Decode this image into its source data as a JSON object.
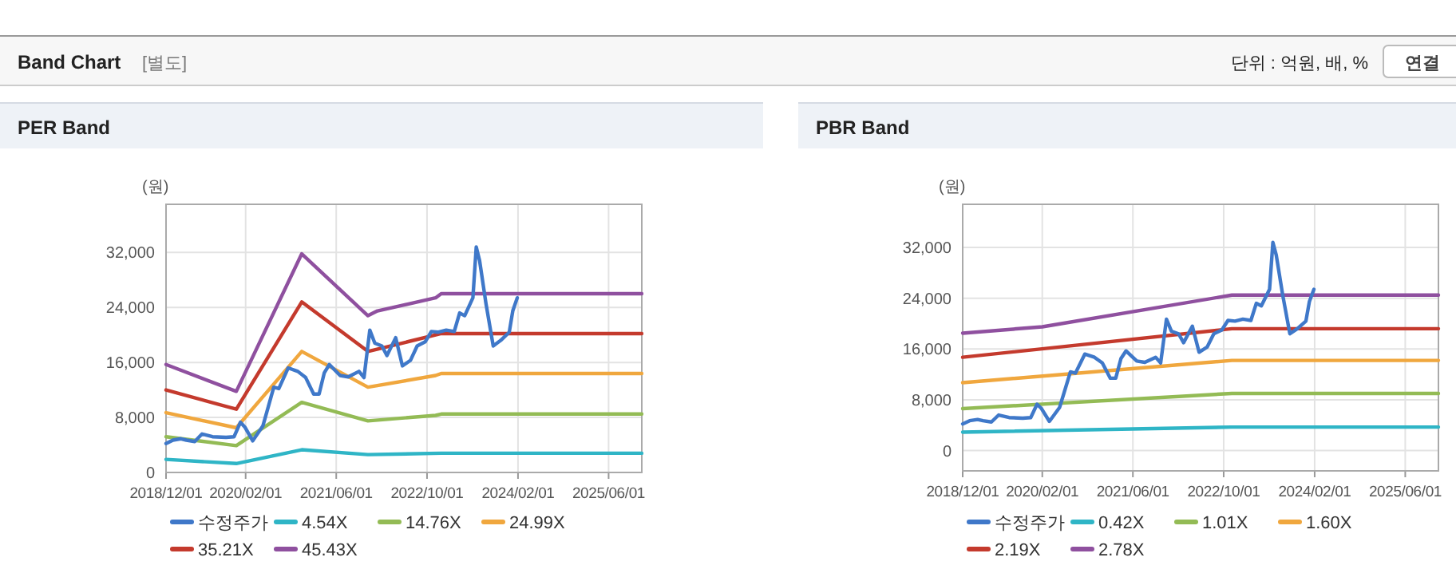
{
  "chart_data": [
    {
      "type": "other",
      "title": "Band Chart",
      "annotations": [
        "[별도]",
        "단위 : 억원, 배, %",
        "연결"
      ]
    },
    {
      "type": "line",
      "title": "PER Band",
      "ylabel": "(원)",
      "xlim": [
        "2018-12-01",
        "2025-11-26"
      ],
      "ylim": [
        0,
        39000
      ],
      "xticks": [
        {
          "value": "2018-12-01",
          "label": "2018/12/01"
        },
        {
          "value": "2020-02-01",
          "label": "2020/02/01"
        },
        {
          "value": "2021-06-01",
          "label": "2021/06/01"
        },
        {
          "value": "2022-10-01",
          "label": "2022/10/01"
        },
        {
          "value": "2024-02-01",
          "label": "2024/02/01"
        },
        {
          "value": "2025-06-01",
          "label": "2025/06/01"
        }
      ],
      "yticks": [
        0,
        {
          "value": 8000,
          "label": "8,000"
        },
        {
          "value": 16000,
          "label": "16,000"
        },
        {
          "value": 24000,
          "label": "24,000"
        },
        {
          "value": 32000,
          "label": "32,000"
        }
      ],
      "grid": true,
      "legend": "bottom",
      "marker": "none",
      "line_style": "solid",
      "series": [
        {
          "name": "수정주가",
          "color": "#3f78c9",
          "x": [
            "2018-12-01",
            "2019-01-07",
            "2019-02-19",
            "2019-03-20",
            "2019-05-04",
            "2019-06-12",
            "2019-08-07",
            "2019-10-19",
            "2019-12-01",
            "2020-01-04",
            "2020-01-28",
            "2020-03-10",
            "2020-05-04",
            "2020-07-01",
            "2020-07-28",
            "2020-09-16",
            "2020-11-07",
            "2020-12-19",
            "2021-01-31",
            "2021-03-01",
            "2021-03-29",
            "2021-04-25",
            "2021-06-22",
            "2021-08-04",
            "2021-10-01",
            "2021-10-28",
            "2021-11-28",
            "2021-12-25",
            "2022-02-01",
            "2022-02-28",
            "2022-04-16",
            "2022-05-22",
            "2022-07-04",
            "2022-08-09",
            "2022-09-21",
            "2022-10-24",
            "2022-12-01",
            "2023-01-12",
            "2023-02-24",
            "2023-03-25",
            "2023-04-21",
            "2023-06-04",
            "2023-06-22",
            "2023-07-10",
            "2023-08-13",
            "2023-09-21",
            "2023-10-31",
            "2023-12-16",
            "2024-01-04",
            "2024-01-28"
          ],
          "values": [
            4200,
            4700,
            4900,
            4700,
            4500,
            5600,
            5200,
            5100,
            5200,
            7300,
            6600,
            4600,
            6800,
            12400,
            12200,
            15200,
            14700,
            13800,
            11400,
            11400,
            14500,
            15700,
            14100,
            13900,
            14700,
            13800,
            20700,
            18800,
            18400,
            17000,
            19600,
            15500,
            16300,
            18400,
            19000,
            20500,
            20400,
            20700,
            20500,
            23200,
            22800,
            25400,
            32800,
            30800,
            24600,
            18400,
            19200,
            20400,
            23500,
            25400
          ]
        },
        {
          "name": "4.54X",
          "color": "#2fb5c6",
          "x": [
            "2018-12-01",
            "2019-12-13",
            "2020-11-28",
            "2021-11-18",
            "2022-12-16",
            "2025-11-26"
          ],
          "values": [
            1900,
            1300,
            3300,
            2600,
            2800,
            2800
          ]
        },
        {
          "name": "14.76X",
          "color": "#93bb55",
          "x": [
            "2018-12-01",
            "2019-12-13",
            "2020-11-28",
            "2021-11-18",
            "2022-11-16",
            "2022-12-16",
            "2025-11-26"
          ],
          "values": [
            5200,
            3900,
            10200,
            7500,
            8300,
            8500,
            8500
          ]
        },
        {
          "name": "24.99X",
          "color": "#f0a73e",
          "x": [
            "2018-12-01",
            "2019-12-13",
            "2020-11-28",
            "2021-11-18",
            "2022-11-16",
            "2022-12-16",
            "2025-11-26"
          ],
          "values": [
            8700,
            6500,
            17600,
            12400,
            14100,
            14400,
            14400
          ]
        },
        {
          "name": "35.21X",
          "color": "#c43a2d",
          "x": [
            "2018-12-01",
            "2019-12-13",
            "2020-11-28",
            "2021-11-18",
            "2022-11-16",
            "2022-12-16",
            "2025-11-26"
          ],
          "values": [
            12000,
            9200,
            24800,
            17600,
            20000,
            20200,
            20200
          ]
        },
        {
          "name": "45.43X",
          "color": "#8f509f",
          "x": [
            "2018-12-01",
            "2019-12-13",
            "2020-11-28",
            "2021-11-18",
            "2022-01-08",
            "2022-11-16",
            "2022-12-16",
            "2025-11-26"
          ],
          "values": [
            15700,
            11800,
            31800,
            22800,
            23500,
            25400,
            26000,
            26000
          ]
        }
      ]
    },
    {
      "type": "line",
      "title": "PBR Band",
      "ylabel": "(원)",
      "xlim": [
        "2018-12-01",
        "2025-11-26"
      ],
      "ylim": [
        -3200,
        38800
      ],
      "xticks": [
        {
          "value": "2018-12-01",
          "label": "2018/12/01"
        },
        {
          "value": "2020-02-01",
          "label": "2020/02/01"
        },
        {
          "value": "2021-06-01",
          "label": "2021/06/01"
        },
        {
          "value": "2022-10-01",
          "label": "2022/10/01"
        },
        {
          "value": "2024-02-01",
          "label": "2024/02/01"
        },
        {
          "value": "2025-06-01",
          "label": "2025/06/01"
        }
      ],
      "yticks": [
        0,
        {
          "value": 8000,
          "label": "8,000"
        },
        {
          "value": 16000,
          "label": "16,000"
        },
        {
          "value": 24000,
          "label": "24,000"
        },
        {
          "value": 32000,
          "label": "32,000"
        }
      ],
      "grid": true,
      "legend": "bottom",
      "marker": "none",
      "line_style": "solid",
      "series": [
        {
          "name": "수정주가",
          "color": "#3f78c9",
          "x": [
            "2018-12-01",
            "2019-01-07",
            "2019-02-19",
            "2019-03-20",
            "2019-05-04",
            "2019-06-12",
            "2019-08-07",
            "2019-10-19",
            "2019-12-01",
            "2020-01-04",
            "2020-01-28",
            "2020-03-10",
            "2020-05-04",
            "2020-07-01",
            "2020-07-28",
            "2020-09-16",
            "2020-11-07",
            "2020-12-19",
            "2021-01-31",
            "2021-03-01",
            "2021-03-29",
            "2021-04-25",
            "2021-06-22",
            "2021-08-04",
            "2021-10-01",
            "2021-10-28",
            "2021-11-28",
            "2021-12-25",
            "2022-02-01",
            "2022-02-28",
            "2022-04-16",
            "2022-05-22",
            "2022-07-04",
            "2022-08-09",
            "2022-09-21",
            "2022-10-24",
            "2022-12-01",
            "2023-01-12",
            "2023-02-24",
            "2023-03-25",
            "2023-04-21",
            "2023-06-04",
            "2023-06-22",
            "2023-07-10",
            "2023-08-13",
            "2023-09-21",
            "2023-10-31",
            "2023-12-16",
            "2024-01-04",
            "2024-01-28"
          ],
          "values": [
            4200,
            4700,
            4900,
            4700,
            4500,
            5600,
            5200,
            5100,
            5200,
            7300,
            6600,
            4600,
            6800,
            12400,
            12200,
            15200,
            14700,
            13800,
            11400,
            11400,
            14500,
            15700,
            14100,
            13900,
            14700,
            13800,
            20700,
            18800,
            18400,
            17000,
            19600,
            15500,
            16300,
            18400,
            19000,
            20500,
            20400,
            20700,
            20500,
            23200,
            22800,
            25400,
            32800,
            30800,
            24600,
            18400,
            19200,
            20400,
            23500,
            25400
          ]
        },
        {
          "name": "0.42X",
          "color": "#2fb5c6",
          "x": [
            "2018-12-01",
            "2022-11-14",
            "2025-11-26"
          ],
          "values": [
            2900,
            3700,
            3700
          ]
        },
        {
          "name": "1.01X",
          "color": "#93bb55",
          "x": [
            "2018-12-01",
            "2022-11-14",
            "2025-11-26"
          ],
          "values": [
            6600,
            9000,
            9000
          ]
        },
        {
          "name": "1.60X",
          "color": "#f0a73e",
          "x": [
            "2018-12-01",
            "2022-11-14",
            "2025-11-26"
          ],
          "values": [
            10700,
            14200,
            14200
          ]
        },
        {
          "name": "2.19X",
          "color": "#c43a2d",
          "x": [
            "2018-12-01",
            "2022-11-14",
            "2025-11-26"
          ],
          "values": [
            14700,
            19200,
            19200
          ]
        },
        {
          "name": "2.78X",
          "color": "#8f509f",
          "x": [
            "2018-12-01",
            "2020-02-01",
            "2022-11-14",
            "2025-11-26"
          ],
          "values": [
            18500,
            19500,
            24500,
            24500
          ]
        }
      ]
    }
  ]
}
